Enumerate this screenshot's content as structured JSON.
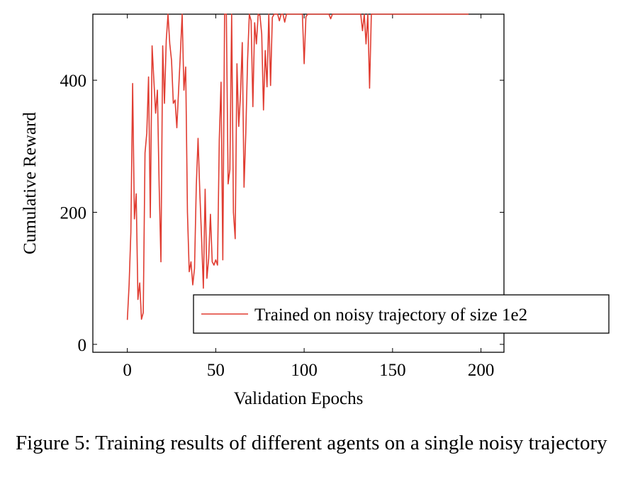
{
  "chart_data": {
    "type": "line",
    "xlabel": "Validation Epochs",
    "ylabel": "Cumulative Reward",
    "xlim": [
      -19.5,
      213
    ],
    "ylim": [
      -12,
      500
    ],
    "x_ticks": [
      0,
      50,
      100,
      150,
      200
    ],
    "y_ticks": [
      0,
      200,
      400
    ],
    "x_tick_labels": [
      "0",
      "50",
      "100",
      "150",
      "200"
    ],
    "y_tick_labels": [
      "0",
      "200",
      "400"
    ],
    "grid": false,
    "legend_position": "bottom-right",
    "series": [
      {
        "name": "Trained on noisy trajectory of size 1e2",
        "color": "#e03c31",
        "points": [
          [
            0,
            37
          ],
          [
            1,
            90
          ],
          [
            2,
            170
          ],
          [
            3,
            395
          ],
          [
            4,
            190
          ],
          [
            5,
            228
          ],
          [
            6,
            68
          ],
          [
            7,
            93
          ],
          [
            8,
            38
          ],
          [
            9,
            48
          ],
          [
            10,
            290
          ],
          [
            11,
            320
          ],
          [
            12,
            405
          ],
          [
            13,
            192
          ],
          [
            14,
            452
          ],
          [
            15,
            400
          ],
          [
            16,
            350
          ],
          [
            17,
            385
          ],
          [
            18,
            240
          ],
          [
            19,
            125
          ],
          [
            20,
            452
          ],
          [
            21,
            365
          ],
          [
            22,
            460
          ],
          [
            23,
            500
          ],
          [
            24,
            455
          ],
          [
            25,
            430
          ],
          [
            26,
            365
          ],
          [
            27,
            370
          ],
          [
            28,
            328
          ],
          [
            29,
            385
          ],
          [
            30,
            440
          ],
          [
            31,
            500
          ],
          [
            32,
            385
          ],
          [
            33,
            420
          ],
          [
            34,
            200
          ],
          [
            35,
            110
          ],
          [
            36,
            125
          ],
          [
            37,
            90
          ],
          [
            38,
            115
          ],
          [
            39,
            240
          ],
          [
            40,
            312
          ],
          [
            41,
            230
          ],
          [
            42,
            160
          ],
          [
            43,
            85
          ],
          [
            44,
            235
          ],
          [
            45,
            100
          ],
          [
            46,
            130
          ],
          [
            47,
            197
          ],
          [
            48,
            125
          ],
          [
            49,
            120
          ],
          [
            50,
            128
          ],
          [
            51,
            120
          ],
          [
            52,
            310
          ],
          [
            53,
            397
          ],
          [
            54,
            128
          ],
          [
            55,
            500
          ],
          [
            56,
            500
          ],
          [
            57,
            243
          ],
          [
            58,
            265
          ],
          [
            59,
            500
          ],
          [
            60,
            200
          ],
          [
            61,
            160
          ],
          [
            62,
            425
          ],
          [
            63,
            330
          ],
          [
            64,
            378
          ],
          [
            65,
            457
          ],
          [
            66,
            238
          ],
          [
            67,
            320
          ],
          [
            68,
            430
          ],
          [
            69,
            500
          ],
          [
            70,
            490
          ],
          [
            71,
            360
          ],
          [
            72,
            487
          ],
          [
            73,
            455
          ],
          [
            74,
            500
          ],
          [
            75,
            498
          ],
          [
            76,
            470
          ],
          [
            77,
            355
          ],
          [
            78,
            445
          ],
          [
            79,
            390
          ],
          [
            80,
            500
          ],
          [
            81,
            392
          ],
          [
            82,
            495
          ],
          [
            83,
            500
          ],
          [
            84,
            500
          ],
          [
            85,
            500
          ],
          [
            86,
            490
          ],
          [
            87,
            500
          ],
          [
            88,
            500
          ],
          [
            89,
            488
          ],
          [
            90,
            500
          ],
          [
            91,
            500
          ],
          [
            92,
            500
          ],
          [
            93,
            500
          ],
          [
            94,
            500
          ],
          [
            95,
            500
          ],
          [
            96,
            500
          ],
          [
            97,
            500
          ],
          [
            98,
            500
          ],
          [
            99,
            500
          ],
          [
            100,
            425
          ],
          [
            101,
            496
          ],
          [
            102,
            500
          ],
          [
            110,
            500
          ],
          [
            114,
            500
          ],
          [
            115,
            493
          ],
          [
            116,
            500
          ],
          [
            130,
            500
          ],
          [
            132,
            500
          ],
          [
            133,
            475
          ],
          [
            134,
            500
          ],
          [
            135,
            455
          ],
          [
            136,
            500
          ],
          [
            137,
            388
          ],
          [
            138,
            500
          ],
          [
            150,
            500
          ],
          [
            170,
            500
          ],
          [
            193,
            500
          ]
        ]
      }
    ]
  },
  "caption": {
    "text": "Figure 5: Training results of different agents on a single noisy trajectory"
  }
}
